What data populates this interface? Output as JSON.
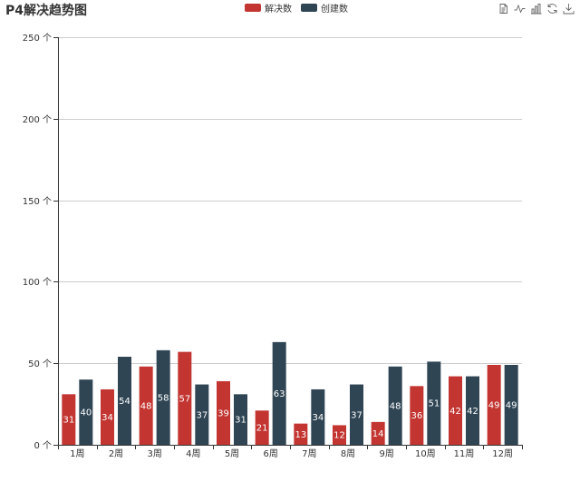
{
  "chart_data": {
    "type": "bar",
    "title": "P4解决趋势图",
    "categories": [
      "1周",
      "2周",
      "3周",
      "4周",
      "5周",
      "6周",
      "7周",
      "8周",
      "9周",
      "10周",
      "11周",
      "12周"
    ],
    "series": [
      {
        "name": "解决数",
        "color": "#c23531",
        "values": [
          31,
          34,
          48,
          57,
          39,
          21,
          13,
          12,
          14,
          36,
          42,
          49
        ]
      },
      {
        "name": "创建数",
        "color": "#2f4554",
        "values": [
          40,
          54,
          58,
          37,
          31,
          63,
          34,
          37,
          48,
          51,
          42,
          49
        ]
      }
    ],
    "yaxis": {
      "min": 0,
      "max": 250,
      "ticks": [
        0,
        50,
        100,
        150,
        200,
        250
      ],
      "tick_labels": [
        "0 个",
        "50 个",
        "100 个",
        "150 个",
        "200 个",
        "250 个"
      ]
    },
    "grid": true,
    "legend_position": "top-center",
    "data_labels": true
  },
  "toolbox": {
    "items": [
      "data-view-icon",
      "line-chart-icon",
      "bar-chart-icon",
      "restore-icon",
      "download-icon"
    ]
  }
}
